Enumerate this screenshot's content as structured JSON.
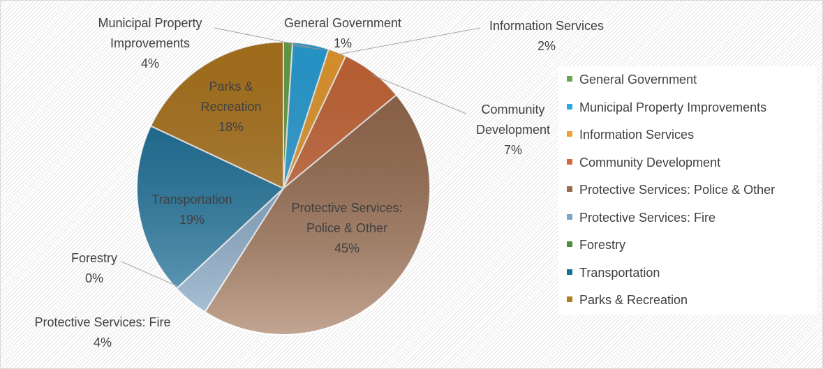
{
  "chart_data": {
    "type": "pie",
    "categories": [
      "General Government",
      "Municipal Property Improvements",
      "Information Services",
      "Community Development",
      "Protective Services: Police & Other",
      "Protective Services: Fire",
      "Forestry",
      "Transportation",
      "Parks & Recreation"
    ],
    "values": [
      1,
      4,
      2,
      7,
      45,
      4,
      0,
      19,
      18
    ],
    "value_labels": [
      "1%",
      "4%",
      "2%",
      "7%",
      "45%",
      "4%",
      "0%",
      "19%",
      "18%"
    ],
    "colors": [
      "#6aa84f",
      "#2aa6e0",
      "#f0a030",
      "#d06a38",
      "#9a6a4a",
      "#7ea4c6",
      "#4e8f34",
      "#15709c",
      "#b47a1e"
    ],
    "legend": "right"
  }
}
